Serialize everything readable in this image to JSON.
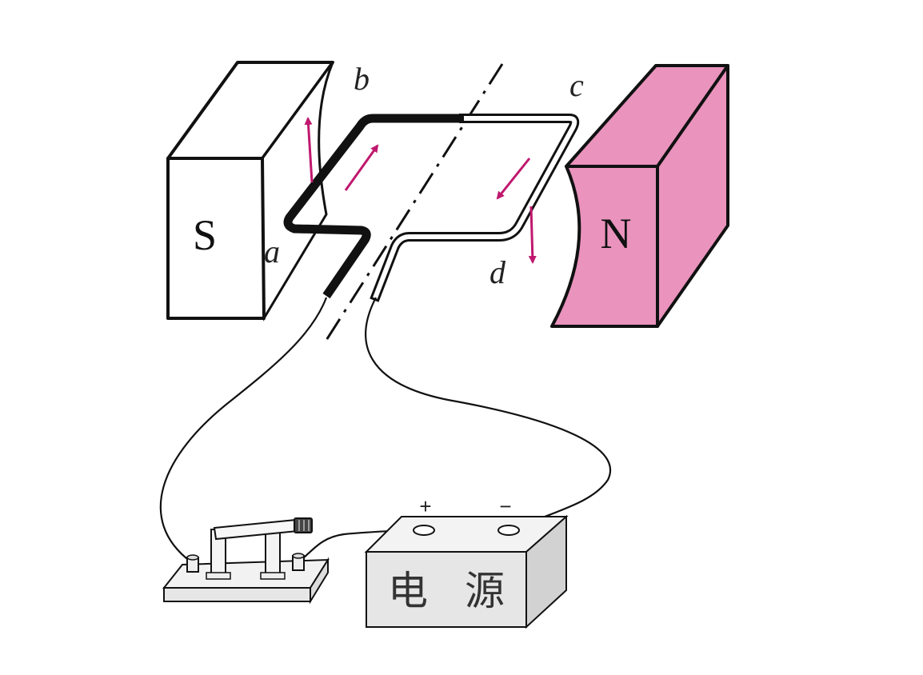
{
  "magnets": {
    "south": {
      "label": "S",
      "color": "#ffffff"
    },
    "north": {
      "label": "N",
      "color": "#e993bd"
    }
  },
  "coil": {
    "corner_labels": [
      "a",
      "b",
      "c",
      "d"
    ],
    "arrow_color": "#c0186e"
  },
  "battery": {
    "label_left": "电",
    "label_right": "源",
    "positive_sign": "+",
    "negative_sign": "−"
  }
}
